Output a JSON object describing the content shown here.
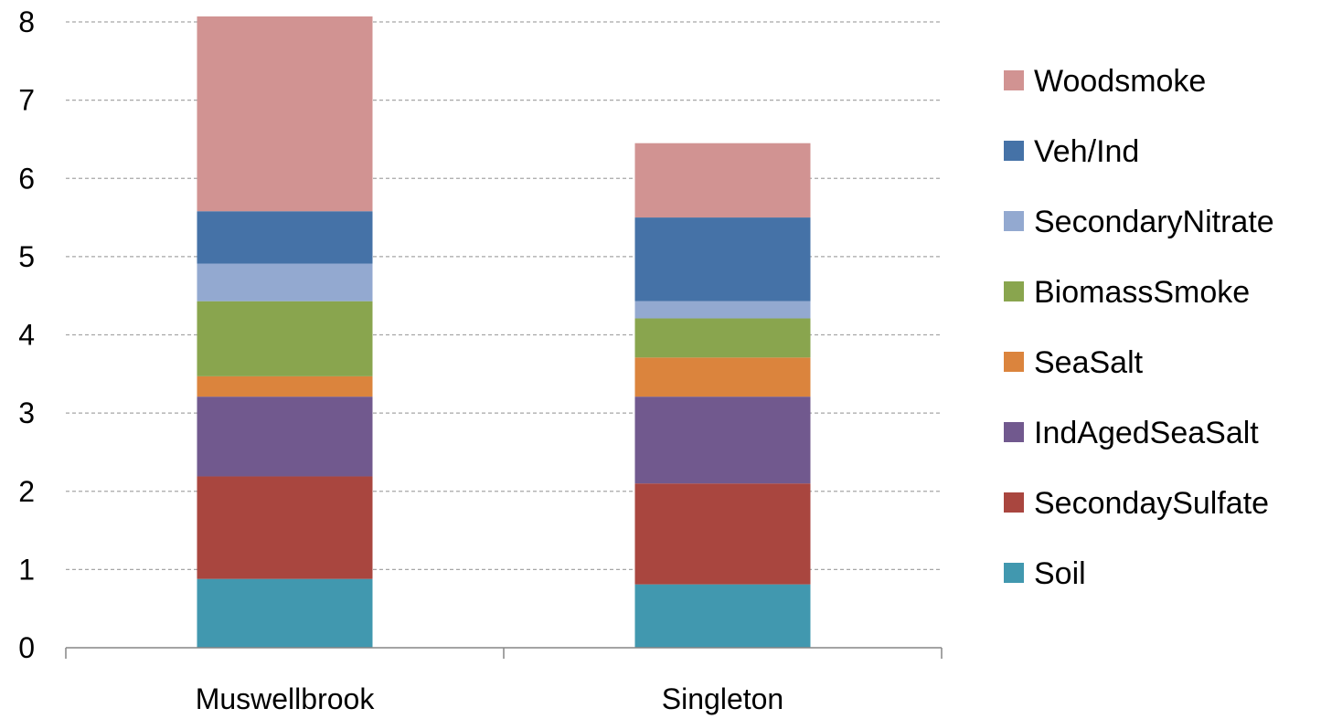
{
  "chart_data": {
    "type": "bar",
    "stacked": true,
    "categories": [
      "Muswellbrook",
      "Singleton"
    ],
    "ylim": [
      0,
      8
    ],
    "y_ticks": [
      "0",
      "1",
      "2",
      "3",
      "4",
      "5",
      "6",
      "7",
      "8"
    ],
    "grid": "horizontal dashed",
    "legend_position": "right",
    "series": [
      {
        "name": "Soil",
        "color": "#4198AF",
        "values": [
          0.88,
          0.81
        ]
      },
      {
        "name": "SecondaySulfate",
        "color": "#A9463F",
        "values": [
          1.31,
          1.29
        ]
      },
      {
        "name": "IndAgedSeaSalt",
        "color": "#71598E",
        "values": [
          1.02,
          1.11
        ]
      },
      {
        "name": "SeaSalt",
        "color": "#DB843D",
        "values": [
          0.26,
          0.5
        ]
      },
      {
        "name": "BiomassSmoke",
        "color": "#89A54E",
        "values": [
          0.96,
          0.5
        ]
      },
      {
        "name": "SecondaryNitrate",
        "color": "#93A9D0",
        "values": [
          0.48,
          0.22
        ]
      },
      {
        "name": "Veh/Ind",
        "color": "#4572A7",
        "values": [
          0.67,
          1.07
        ]
      },
      {
        "name": "Woodsmoke",
        "color": "#D19392",
        "values": [
          2.49,
          0.95
        ]
      }
    ]
  }
}
